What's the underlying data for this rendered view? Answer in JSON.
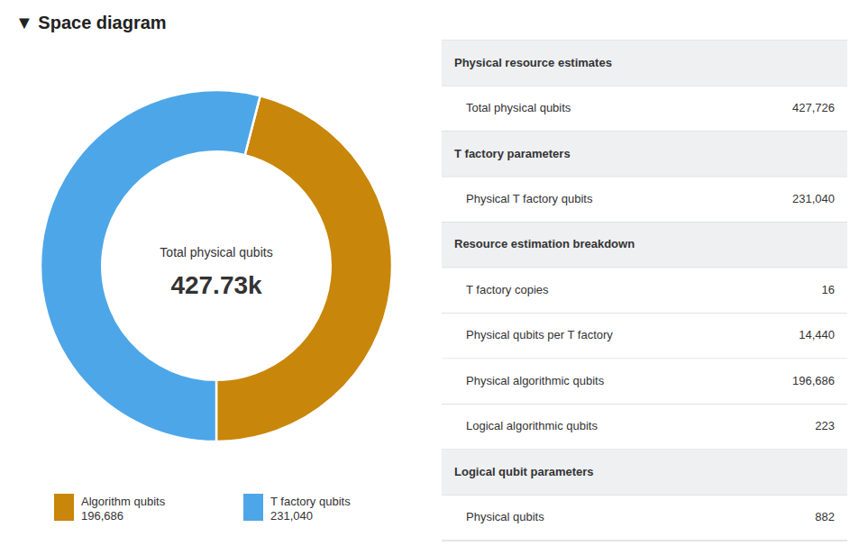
{
  "chart_data": [
    {
      "type": "pie",
      "title": "▼ Space diagram",
      "categories": [
        "Algorithm qubits",
        "T factory qubits"
      ],
      "values": [
        196686,
        231040
      ],
      "value_labels": [
        "196,686",
        "231,040"
      ],
      "colors": [
        "#c8860a",
        "#4da6e8"
      ],
      "annotations": [
        "Total physical qubits",
        "427.73k"
      ],
      "legend": "bottom"
    },
    {
      "type": "table",
      "sections": [
        {
          "header": "Physical resource estimates",
          "rows": [
            {
              "label": "Total physical qubits",
              "value": "427,726"
            }
          ]
        },
        {
          "header": "T factory parameters",
          "rows": [
            {
              "label": "Physical T factory qubits",
              "value": "231,040"
            }
          ]
        },
        {
          "header": "Resource estimation breakdown",
          "rows": [
            {
              "label": "T factory copies",
              "value": "16"
            },
            {
              "label": "Physical qubits per T factory",
              "value": "14,440"
            },
            {
              "label": "Physical algorithmic qubits",
              "value": "196,686"
            },
            {
              "label": "Logical algorithmic qubits",
              "value": "223"
            }
          ]
        },
        {
          "header": "Logical qubit parameters",
          "rows": [
            {
              "label": "Physical qubits",
              "value": "882"
            }
          ]
        }
      ]
    }
  ]
}
